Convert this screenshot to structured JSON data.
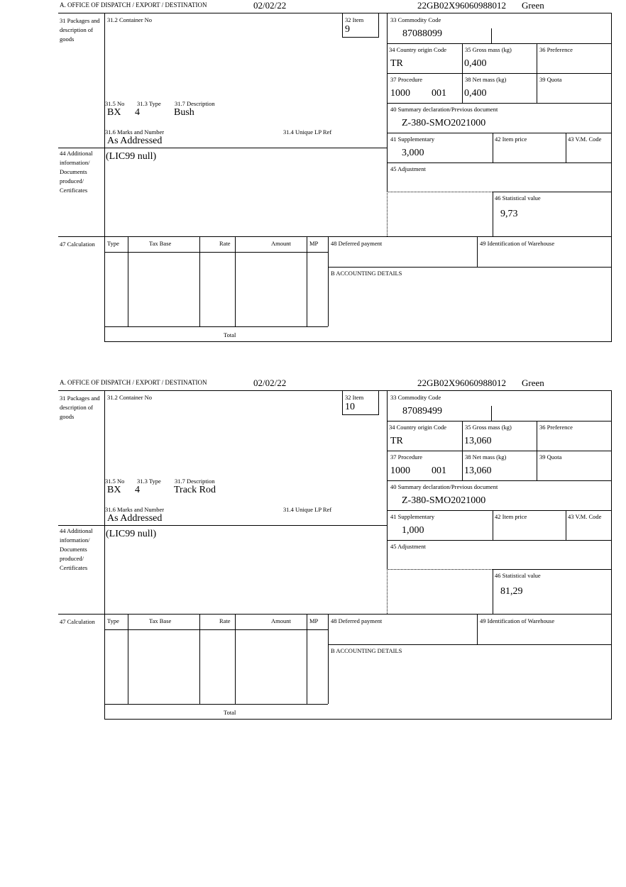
{
  "labels": {
    "office": "A.  OFFICE OF DISPATCH / EXPORT / DESTINATION",
    "packages": "31 Packages and description of goods",
    "container_no": "31.2 Container No",
    "item": "32 Item",
    "commodity_code": "33 Commodity Code",
    "country_origin": "34 Country origin Code",
    "gross_mass": "35 Gross mass (kg)",
    "preference": "36 Preference",
    "procedure": "37 Procedure",
    "net_mass": "38 Net mass (kg)",
    "quota": "39 Quota",
    "summary_declaration": "40 Summary declaration/Previous document",
    "supplementary": "41 Supplementary",
    "item_price": "42 Item price",
    "vm_code": "43 V.M. Code",
    "adjustment": "45 Adjustment",
    "statistical_value": "46 Statistical value",
    "pkg_no": "31.5 No",
    "pkg_type": "31.3 Type",
    "pkg_description": "31.7 Description",
    "marks": "31.6 Marks and Number",
    "unique_lp_ref": "31.4 Unique LP Ref",
    "additional_info": "44 Additional information/ Documents produced/ Certificates",
    "calculation": "47 Calculation",
    "col_type": "Type",
    "col_tax_base": "Tax Base",
    "col_rate": "Rate",
    "col_amount": "Amount",
    "col_mp": "MP",
    "total": "Total",
    "deferred_payment": "48 Deferred payment",
    "warehouse": "49 Identification of Warehouse",
    "accounting": "B ACCOUNTING DETAILS"
  },
  "forms": [
    {
      "date": "02/02/22",
      "reference": "22GB02X96060988012",
      "route": "Green",
      "item": "9",
      "commodity_code": "87088099",
      "country_origin": "TR",
      "gross_mass": "0,400",
      "procedure": "1000",
      "procedure_suffix": "001",
      "net_mass": "0,400",
      "summary_declaration": "Z-380-SMO2021000",
      "supplementary": "3,000",
      "statistical_value": "9,73",
      "pkg_no": "BX",
      "pkg_type": "4",
      "pkg_description": "Bush",
      "marks": "As Addressed",
      "additional_info": "(LIC99 null)"
    },
    {
      "date": "02/02/22",
      "reference": "22GB02X96060988012",
      "route": "Green",
      "item": "10",
      "commodity_code": "87089499",
      "country_origin": "TR",
      "gross_mass": "13,060",
      "procedure": "1000",
      "procedure_suffix": "001",
      "net_mass": "13,060",
      "summary_declaration": "Z-380-SMO2021000",
      "supplementary": "1,000",
      "statistical_value": "81,29",
      "pkg_no": "BX",
      "pkg_type": "4",
      "pkg_description": "Track Rod",
      "marks": "As Addressed",
      "additional_info": "(LIC99 null)"
    }
  ]
}
